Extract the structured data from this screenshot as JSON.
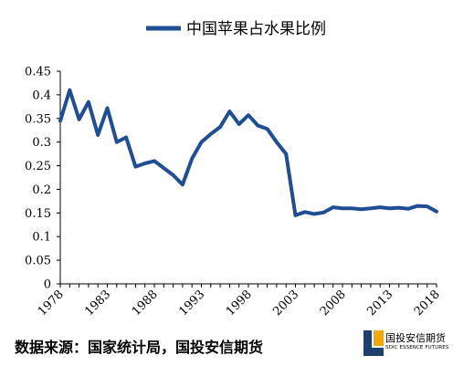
{
  "chart_data": {
    "type": "line",
    "title": "",
    "xlabel": "",
    "ylabel": "",
    "ylim": [
      0,
      0.45
    ],
    "yticks": [
      "0",
      "0.05",
      "0.1",
      "0.15",
      "0.2",
      "0.25",
      "0.3",
      "0.35",
      "0.4",
      "0.45"
    ],
    "xticks": [
      "1978",
      "1983",
      "1988",
      "1993",
      "1998",
      "2003",
      "2008",
      "2013",
      "2018"
    ],
    "x": [
      1978,
      1979,
      1980,
      1981,
      1982,
      1983,
      1984,
      1985,
      1986,
      1987,
      1988,
      1989,
      1990,
      1991,
      1992,
      1993,
      1994,
      1995,
      1996,
      1997,
      1998,
      1999,
      2000,
      2001,
      2002,
      2003,
      2004,
      2005,
      2006,
      2007,
      2008,
      2009,
      2010,
      2011,
      2012,
      2013,
      2014,
      2015,
      2016,
      2017,
      2018
    ],
    "series": [
      {
        "name": "中国苹果占水果比例",
        "color": "#1f4e96",
        "values": [
          0.345,
          0.41,
          0.348,
          0.385,
          0.315,
          0.372,
          0.3,
          0.31,
          0.248,
          0.255,
          0.26,
          0.245,
          0.23,
          0.21,
          0.265,
          0.3,
          0.317,
          0.332,
          0.365,
          0.338,
          0.357,
          0.335,
          0.328,
          0.3,
          0.275,
          0.145,
          0.152,
          0.148,
          0.151,
          0.162,
          0.16,
          0.16,
          0.158,
          0.16,
          0.162,
          0.16,
          0.161,
          0.159,
          0.165,
          0.164,
          0.153
        ]
      }
    ],
    "grid": false,
    "legend": "top"
  },
  "footer": {
    "source": "数据来源：国家统计局，国投安信期货",
    "logo_cn": "国投安信期货",
    "logo_en": "SDIC ESSENCE FUTURES"
  },
  "colors": {
    "line": "#1f4e96",
    "axis": "#000000",
    "logo_accent": "#f2a900",
    "logo_dark": "#1f3f6e"
  }
}
